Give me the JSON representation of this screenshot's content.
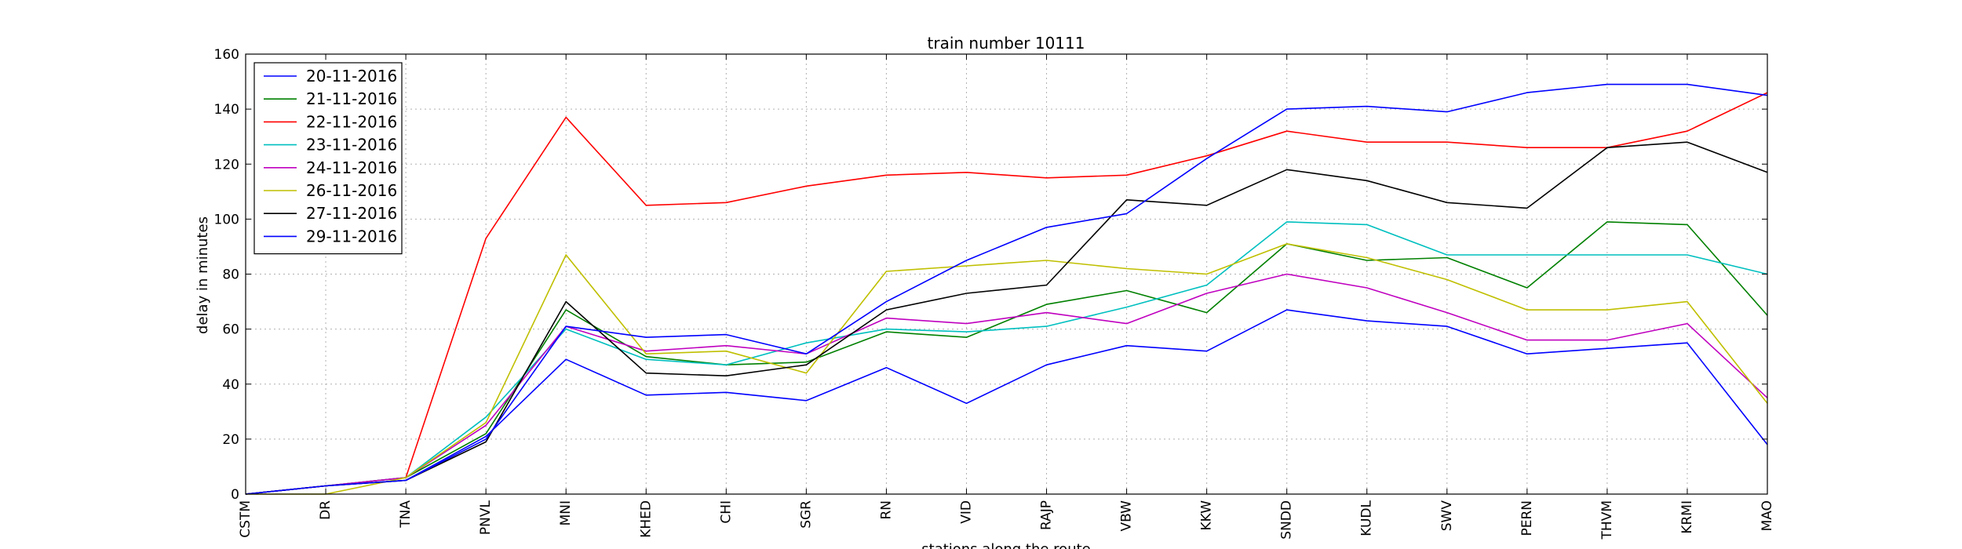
{
  "chart_data": {
    "type": "line",
    "title": "train number 10111",
    "xlabel": "stations along the route",
    "ylabel": "delay in minutes",
    "ylim": [
      0,
      160
    ],
    "yticks": [
      0,
      20,
      40,
      60,
      80,
      100,
      120,
      140,
      160
    ],
    "grid": true,
    "legend_position": "top-left",
    "categories": [
      "CSTM",
      "DR",
      "TNA",
      "PNVL",
      "MNI",
      "KHED",
      "CHI",
      "SGR",
      "RN",
      "VID",
      "RAJP",
      "VBW",
      "KKW",
      "SNDD",
      "KUDL",
      "SWV",
      "PERN",
      "THVM",
      "KRMI",
      "MAO"
    ],
    "series": [
      {
        "name": "20-11-2016",
        "color": "#0000ff",
        "values": [
          0,
          3,
          5,
          21,
          49,
          36,
          37,
          34,
          46,
          33,
          47,
          54,
          52,
          67,
          63,
          61,
          51,
          53,
          55,
          18
        ]
      },
      {
        "name": "21-11-2016",
        "color": "#008000",
        "values": [
          0,
          3,
          6,
          22,
          67,
          50,
          47,
          48,
          59,
          57,
          69,
          74,
          66,
          91,
          85,
          86,
          75,
          99,
          98,
          65
        ]
      },
      {
        "name": "22-11-2016",
        "color": "#ff0000",
        "values": [
          0,
          3,
          6,
          93,
          137,
          105,
          106,
          112,
          116,
          117,
          115,
          116,
          123,
          132,
          128,
          128,
          126,
          126,
          132,
          146
        ]
      },
      {
        "name": "23-11-2016",
        "color": "#00bfbf",
        "values": [
          0,
          3,
          6,
          28,
          60,
          49,
          47,
          55,
          60,
          59,
          61,
          68,
          76,
          99,
          98,
          87,
          87,
          87,
          87,
          80
        ]
      },
      {
        "name": "24-11-2016",
        "color": "#bf00bf",
        "values": [
          0,
          3,
          6,
          25,
          61,
          52,
          54,
          51,
          64,
          62,
          66,
          62,
          73,
          80,
          75,
          66,
          56,
          56,
          62,
          35
        ]
      },
      {
        "name": "26-11-2016",
        "color": "#bfbf00",
        "values": [
          0,
          0,
          6,
          26,
          87,
          51,
          52,
          44,
          81,
          83,
          85,
          82,
          80,
          91,
          86,
          78,
          67,
          67,
          70,
          33
        ]
      },
      {
        "name": "27-11-2016",
        "color": "#000000",
        "values": [
          0,
          3,
          5,
          19,
          70,
          44,
          43,
          47,
          67,
          73,
          76,
          107,
          105,
          118,
          114,
          106,
          104,
          126,
          128,
          117
        ]
      },
      {
        "name": "29-11-2016",
        "color": "#0000ff",
        "values": [
          0,
          3,
          5,
          20,
          61,
          57,
          58,
          51,
          70,
          85,
          97,
          102,
          122,
          140,
          141,
          139,
          146,
          149,
          149,
          145
        ]
      }
    ]
  }
}
